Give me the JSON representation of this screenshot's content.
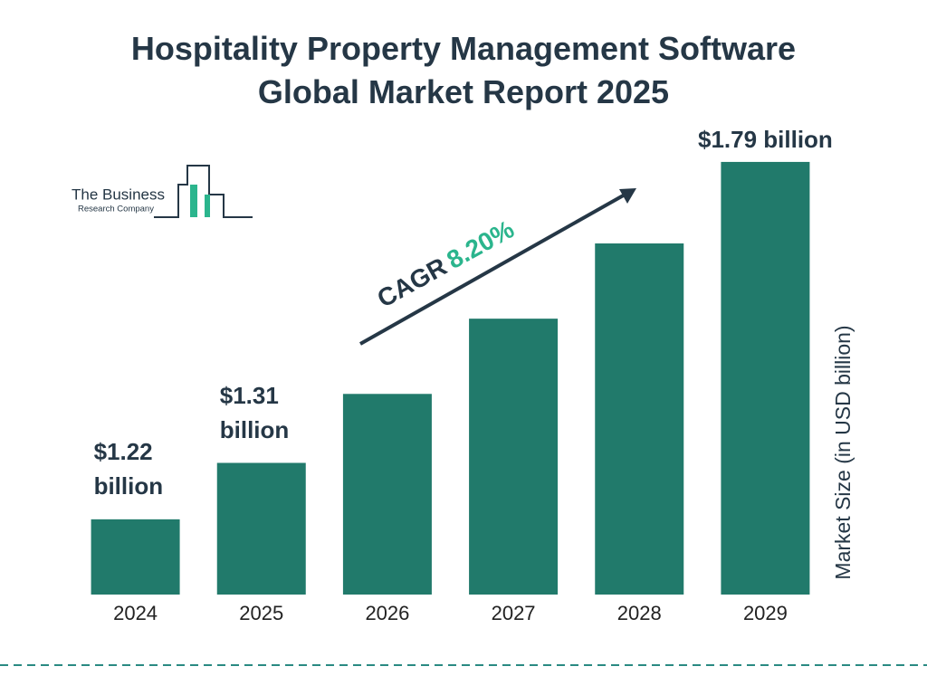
{
  "chart_data": {
    "type": "bar",
    "title": "Hospitality Property Management Software Global Market Report 2025",
    "categories": [
      "2024",
      "2025",
      "2026",
      "2027",
      "2028",
      "2029"
    ],
    "values": [
      1.22,
      1.31,
      1.42,
      1.54,
      1.66,
      1.79
    ],
    "value_labels": [
      "$1.22 billion",
      "$1.31 billion",
      null,
      null,
      null,
      "$1.79 billion"
    ],
    "color": "#217a6b",
    "ylabel": "Market Size (in USD billion)",
    "ylim": [
      1.1,
      1.8
    ],
    "cagr": {
      "label": "CAGR",
      "value": 8.2,
      "value_label": "8.20%"
    }
  },
  "logo": {
    "line1": "The Business",
    "line2": "Research Company"
  }
}
